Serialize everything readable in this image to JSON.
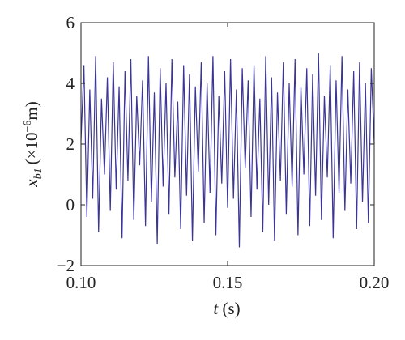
{
  "chart_data": {
    "type": "line",
    "x_label": {
      "symbol": "t",
      "unit": "(s)"
    },
    "y_label": {
      "symbol": "x",
      "subscript": "b1",
      "unit": "(×10",
      "exponent": "−6",
      "unit_end": "m)"
    },
    "x": [
      0.1,
      0.101,
      0.102,
      0.103,
      0.104,
      0.105,
      0.106,
      0.107,
      0.108,
      0.109,
      0.11,
      0.111,
      0.112,
      0.113,
      0.114,
      0.115,
      0.116,
      0.117,
      0.118,
      0.119,
      0.12,
      0.121,
      0.122,
      0.123,
      0.124,
      0.125,
      0.126,
      0.127,
      0.128,
      0.129,
      0.13,
      0.131,
      0.132,
      0.133,
      0.134,
      0.135,
      0.136,
      0.137,
      0.138,
      0.139,
      0.14,
      0.141,
      0.142,
      0.143,
      0.144,
      0.145,
      0.146,
      0.147,
      0.148,
      0.149,
      0.15,
      0.151,
      0.152,
      0.153,
      0.154,
      0.155,
      0.156,
      0.157,
      0.158,
      0.159,
      0.16,
      0.161,
      0.162,
      0.163,
      0.164,
      0.165,
      0.166,
      0.167,
      0.168,
      0.169,
      0.17,
      0.171,
      0.172,
      0.173,
      0.174,
      0.175,
      0.176,
      0.177,
      0.178,
      0.179,
      0.18,
      0.181,
      0.182,
      0.183,
      0.184,
      0.185,
      0.186,
      0.187,
      0.188,
      0.189,
      0.19,
      0.191,
      0.192,
      0.193,
      0.194,
      0.195,
      0.196,
      0.197,
      0.198,
      0.199,
      0.2
    ],
    "series": [
      {
        "color": "#3a3596",
        "values": [
          2.1,
          4.6,
          -0.4,
          3.8,
          0.2,
          4.9,
          -0.9,
          3.5,
          1.0,
          4.2,
          -0.2,
          4.7,
          0.5,
          3.9,
          -1.1,
          4.4,
          0.8,
          4.8,
          -0.5,
          3.6,
          1.3,
          4.1,
          -0.7,
          4.9,
          0.1,
          3.7,
          -1.3,
          4.5,
          0.6,
          4.0,
          -0.3,
          4.8,
          0.9,
          3.4,
          -0.8,
          4.6,
          0.3,
          4.3,
          -1.2,
          3.9,
          1.1,
          4.7,
          -0.6,
          4.0,
          0.4,
          4.9,
          -1.0,
          3.6,
          0.7,
          4.4,
          -0.1,
          4.8,
          0.2,
          3.8,
          -1.4,
          4.5,
          1.2,
          4.1,
          -0.4,
          4.6,
          0.5,
          3.5,
          -0.9,
          4.9,
          0.0,
          4.2,
          -1.2,
          3.7,
          0.8,
          4.7,
          -0.3,
          4.0,
          0.6,
          4.8,
          -1.0,
          3.9,
          1.0,
          4.5,
          -0.7,
          4.3,
          0.3,
          5.0,
          -0.5,
          3.6,
          0.9,
          4.6,
          -1.1,
          4.1,
          0.4,
          4.9,
          -0.2,
          3.8,
          0.7,
          4.4,
          -0.8,
          4.7,
          0.1,
          4.0,
          -0.6,
          4.5,
          2.0
        ]
      }
    ],
    "xlim": [
      0.1,
      0.2
    ],
    "xticks": [
      {
        "value": 0.1,
        "label": "0.10"
      },
      {
        "value": 0.15,
        "label": "0.15"
      },
      {
        "value": 0.2,
        "label": "0.20"
      }
    ],
    "ylim": [
      -2,
      6
    ],
    "yticks": [
      {
        "value": -2,
        "label": "−2"
      },
      0,
      2,
      4,
      6
    ]
  }
}
